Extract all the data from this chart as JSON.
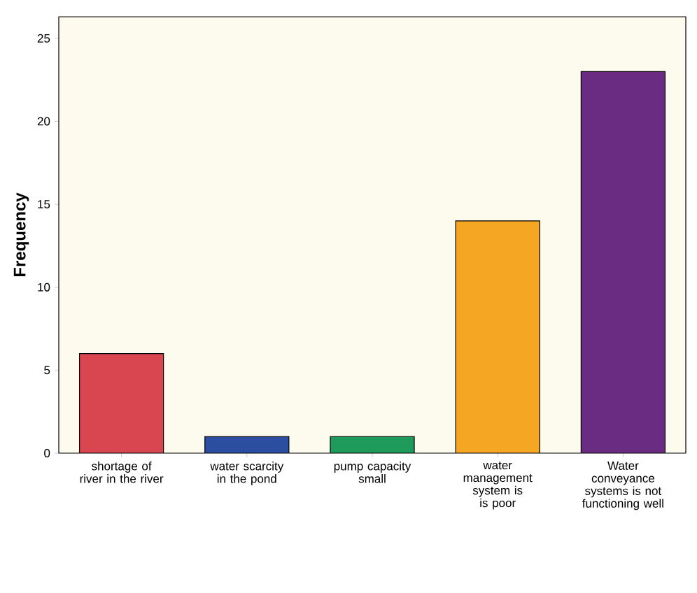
{
  "chart_data": {
    "type": "bar",
    "ylabel": "Frequency",
    "categories": [
      "shortage of river in the river",
      "water scarcity in the pond",
      "pump capacity small",
      "water management system is is poor",
      "Water conveyance systems is not functioning well"
    ],
    "values": [
      6,
      1,
      1,
      14,
      23
    ],
    "colors": [
      "#d9464f",
      "#2b4ea0",
      "#1e9a5a",
      "#f5a623",
      "#6a2c83"
    ],
    "ylim": [
      0,
      26.3
    ],
    "yticks": [
      0,
      5,
      10,
      15,
      20,
      25
    ]
  }
}
